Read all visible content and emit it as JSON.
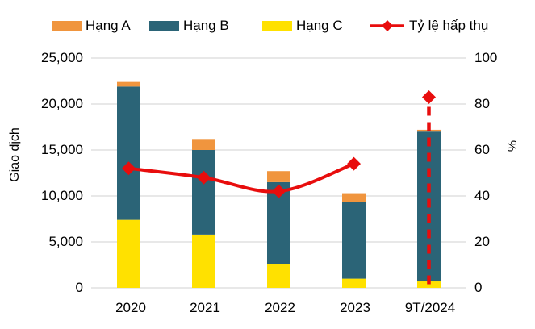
{
  "legend": {
    "items": [
      {
        "label": "Hạng A",
        "color": "#F0953E",
        "marker": "box"
      },
      {
        "label": "Hạng B",
        "color": "#2B6477",
        "marker": "box"
      },
      {
        "label": "Hạng C",
        "color": "#FFE100",
        "marker": "box"
      },
      {
        "label": "Tỷ lệ hấp thụ",
        "color": "#E80D0D",
        "marker": "line-diamond"
      }
    ]
  },
  "chart_data": {
    "type": "bar",
    "subtype": "stacked-bars-with-secondary-axis-line",
    "title": "",
    "categories": [
      "2020",
      "2021",
      "2022",
      "2023",
      "9T/2024"
    ],
    "series": [
      {
        "name": "Hạng A",
        "type": "bar",
        "color": "#F0953E",
        "values": [
          500,
          1200,
          1200,
          1000,
          200
        ]
      },
      {
        "name": "Hạng B",
        "type": "bar",
        "color": "#2B6477",
        "values": [
          14500,
          9200,
          8900,
          8300,
          16300
        ]
      },
      {
        "name": "Hạng C",
        "type": "bar",
        "color": "#FFE100",
        "values": [
          7400,
          5800,
          2600,
          1000,
          700
        ]
      },
      {
        "name": "Tỷ lệ hấp thụ",
        "type": "line",
        "axis": "right",
        "color": "#E80D0D",
        "marker": "diamond",
        "values": [
          52,
          48,
          42,
          54,
          83
        ],
        "solid_points": 4,
        "last_point_style": "dashed-vertical-dropline"
      }
    ],
    "stack_order": [
      "Hạng C",
      "Hạng B",
      "Hạng A"
    ],
    "left_axis": {
      "title": "Giao dịch",
      "min": 0,
      "max": 25000,
      "step": 5000,
      "tick_labels": [
        "25,000",
        "20,000",
        "15,000",
        "10,000",
        "5,000",
        "0"
      ]
    },
    "right_axis": {
      "title": "%",
      "min": 0,
      "max": 100,
      "step": 20,
      "tick_labels": [
        "100",
        "80",
        "60",
        "40",
        "20",
        "0"
      ]
    },
    "grid": {
      "color": "#D9D9D9",
      "horizontal": true
    },
    "legend_position": "top"
  }
}
